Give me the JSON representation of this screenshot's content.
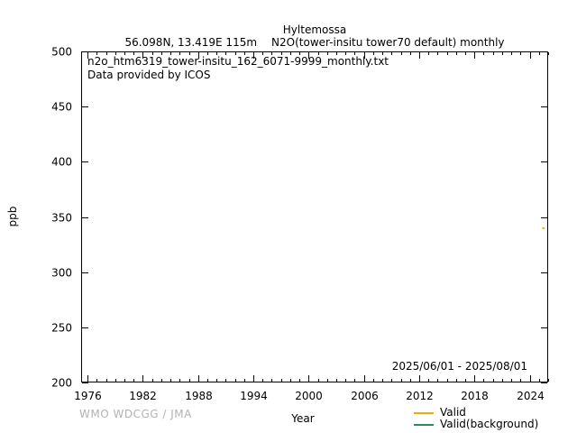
{
  "header": {
    "title": "Hyltemossa",
    "station_info": "56.098N, 13.419E 115m",
    "series_info": "N2O(tower-insitu tower70 default) monthly"
  },
  "annotations": {
    "filename": "n2o_htm6319_tower-insitu_162_6071-9999_monthly.txt",
    "provider": "Data provided by ICOS",
    "date_range": "2025/06/01 - 2025/08/01"
  },
  "footer": {
    "credit": "WMO WDCGG / JMA"
  },
  "chart_data": {
    "type": "line",
    "title": "Hyltemossa — N2O(tower-insitu tower70 default) monthly",
    "xlabel": "Year",
    "ylabel": "ppb",
    "xlim": [
      1975.3,
      2026.0
    ],
    "ylim": [
      200,
      500
    ],
    "x_major_ticks": [
      1976,
      1982,
      1988,
      1994,
      2000,
      2006,
      2012,
      2018,
      2024
    ],
    "x_minor_step_years": 1,
    "y_major_ticks": [
      200,
      250,
      300,
      350,
      400,
      450,
      500
    ],
    "grid": false,
    "legend_position": "bottom-right-below-axis",
    "series": [
      {
        "name": "Valid",
        "color": "#FFA500",
        "x": [
          2025.46,
          2025.54
        ],
        "y": [
          340.0,
          339.6
        ]
      },
      {
        "name": "Valid(background)",
        "color": "#2E8B57",
        "x": [],
        "y": []
      }
    ]
  }
}
